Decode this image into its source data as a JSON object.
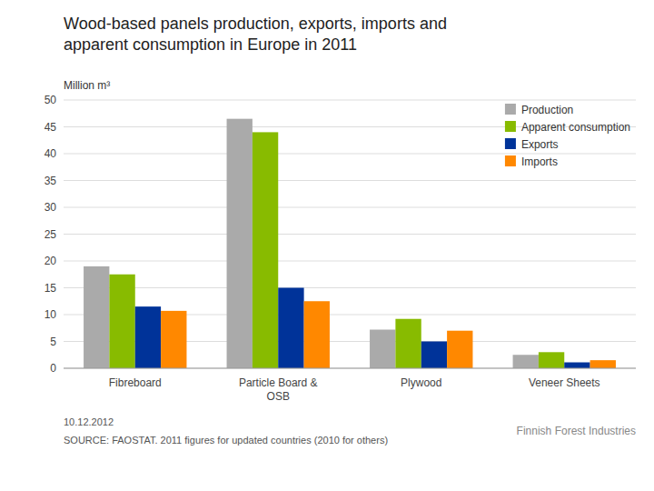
{
  "chart_data": {
    "type": "bar",
    "title": "Wood-based panels production, exports, imports and\napparent consumption in Europe in 2011",
    "ylabel": "Million m³",
    "categories": [
      "Fibreboard",
      "Particle Board &\nOSB",
      "Plywood",
      "Veneer Sheets"
    ],
    "series": [
      {
        "name": "Production",
        "color": "#aaaaaa",
        "values": [
          19.0,
          46.5,
          7.2,
          2.5
        ]
      },
      {
        "name": "Apparent consumption",
        "color": "#88bb00",
        "values": [
          17.5,
          44.0,
          9.2,
          3.0
        ]
      },
      {
        "name": "Exports",
        "color": "#003399",
        "values": [
          11.5,
          15.0,
          5.0,
          1.1
        ]
      },
      {
        "name": "Imports",
        "color": "#ff8800",
        "values": [
          10.7,
          12.5,
          7.0,
          1.5
        ]
      }
    ],
    "ylim": [
      0,
      50
    ],
    "yticks": [
      0,
      5,
      10,
      15,
      20,
      25,
      30,
      35,
      40,
      45,
      50
    ],
    "grid": true,
    "legend": "upper right",
    "annotations": [
      "10.12.2012",
      "SOURCE: FAOSTAT. 2011 figures for updated countries (2010 for others)",
      "Finnish Forest Industries"
    ]
  }
}
